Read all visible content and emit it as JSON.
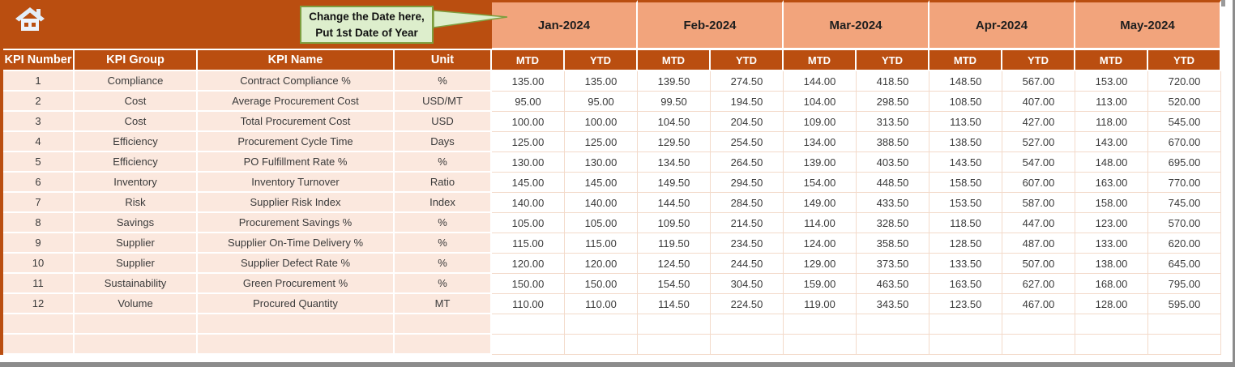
{
  "header": {
    "callout": {
      "line1": "Change the Date here,",
      "line2": "Put 1st Date of Year"
    },
    "months": [
      "Jan-2024",
      "Feb-2024",
      "Mar-2024",
      "Apr-2024",
      "May-2024"
    ],
    "sub_headers": [
      "MTD",
      "YTD"
    ]
  },
  "table": {
    "column_headers": [
      "KPI Number",
      "KPI Group",
      "KPI Name",
      "Unit"
    ],
    "rows": [
      {
        "kpi_number": "1",
        "kpi_group": "Compliance",
        "kpi_name": "Contract Compliance %",
        "unit": "%",
        "values": [
          "135.00",
          "135.00",
          "139.50",
          "274.50",
          "144.00",
          "418.50",
          "148.50",
          "567.00",
          "153.00",
          "720.00"
        ]
      },
      {
        "kpi_number": "2",
        "kpi_group": "Cost",
        "kpi_name": "Average Procurement Cost",
        "unit": "USD/MT",
        "values": [
          "95.00",
          "95.00",
          "99.50",
          "194.50",
          "104.00",
          "298.50",
          "108.50",
          "407.00",
          "113.00",
          "520.00"
        ]
      },
      {
        "kpi_number": "3",
        "kpi_group": "Cost",
        "kpi_name": "Total Procurement Cost",
        "unit": "USD",
        "values": [
          "100.00",
          "100.00",
          "104.50",
          "204.50",
          "109.00",
          "313.50",
          "113.50",
          "427.00",
          "118.00",
          "545.00"
        ]
      },
      {
        "kpi_number": "4",
        "kpi_group": "Efficiency",
        "kpi_name": "Procurement Cycle Time",
        "unit": "Days",
        "values": [
          "125.00",
          "125.00",
          "129.50",
          "254.50",
          "134.00",
          "388.50",
          "138.50",
          "527.00",
          "143.00",
          "670.00"
        ]
      },
      {
        "kpi_number": "5",
        "kpi_group": "Efficiency",
        "kpi_name": "PO Fulfillment Rate %",
        "unit": "%",
        "values": [
          "130.00",
          "130.00",
          "134.50",
          "264.50",
          "139.00",
          "403.50",
          "143.50",
          "547.00",
          "148.00",
          "695.00"
        ]
      },
      {
        "kpi_number": "6",
        "kpi_group": "Inventory",
        "kpi_name": "Inventory Turnover",
        "unit": "Ratio",
        "values": [
          "145.00",
          "145.00",
          "149.50",
          "294.50",
          "154.00",
          "448.50",
          "158.50",
          "607.00",
          "163.00",
          "770.00"
        ]
      },
      {
        "kpi_number": "7",
        "kpi_group": "Risk",
        "kpi_name": "Supplier Risk Index",
        "unit": "Index",
        "values": [
          "140.00",
          "140.00",
          "144.50",
          "284.50",
          "149.00",
          "433.50",
          "153.50",
          "587.00",
          "158.00",
          "745.00"
        ]
      },
      {
        "kpi_number": "8",
        "kpi_group": "Savings",
        "kpi_name": "Procurement Savings %",
        "unit": "%",
        "values": [
          "105.00",
          "105.00",
          "109.50",
          "214.50",
          "114.00",
          "328.50",
          "118.50",
          "447.00",
          "123.00",
          "570.00"
        ]
      },
      {
        "kpi_number": "9",
        "kpi_group": "Supplier",
        "kpi_name": "Supplier On-Time Delivery %",
        "unit": "%",
        "values": [
          "115.00",
          "115.00",
          "119.50",
          "234.50",
          "124.00",
          "358.50",
          "128.50",
          "487.00",
          "133.00",
          "620.00"
        ]
      },
      {
        "kpi_number": "10",
        "kpi_group": "Supplier",
        "kpi_name": "Supplier Defect Rate %",
        "unit": "%",
        "values": [
          "120.00",
          "120.00",
          "124.50",
          "244.50",
          "129.00",
          "373.50",
          "133.50",
          "507.00",
          "138.00",
          "645.00"
        ]
      },
      {
        "kpi_number": "11",
        "kpi_group": "Sustainability",
        "kpi_name": "Green Procurement %",
        "unit": "%",
        "values": [
          "150.00",
          "150.00",
          "154.50",
          "304.50",
          "159.00",
          "463.50",
          "163.50",
          "627.00",
          "168.00",
          "795.00"
        ]
      },
      {
        "kpi_number": "12",
        "kpi_group": "Volume",
        "kpi_name": "Procured Quantity",
        "unit": "MT",
        "values": [
          "110.00",
          "110.00",
          "114.50",
          "224.50",
          "119.00",
          "343.50",
          "123.50",
          "467.00",
          "128.00",
          "595.00"
        ]
      }
    ],
    "empty_row_count": 2
  },
  "colors": {
    "header_rust": "#BA4E10",
    "month_band": "#F2A47C",
    "row_peach": "#FBE8DE",
    "callout_fill": "#DDEECC",
    "callout_border": "#7E9E3F"
  }
}
